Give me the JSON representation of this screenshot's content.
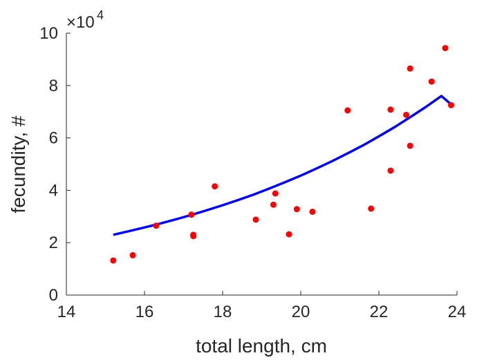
{
  "chart_data": {
    "type": "scatter",
    "title": "",
    "xlabel": "total length, cm",
    "ylabel": "fecundity, #",
    "xlim": [
      14,
      24
    ],
    "ylim": [
      0,
      100000
    ],
    "x_ticks": [
      "14",
      "16",
      "18",
      "20",
      "22",
      "24"
    ],
    "y_ticks": [
      "0",
      "2",
      "4",
      "6",
      "8",
      "10"
    ],
    "y_multiplier_base": "×10",
    "y_multiplier_exponent": "4",
    "grid": false,
    "legend": "none",
    "colors": {
      "points": "#ff0000",
      "fit": "#0000ee",
      "axes": "#262626"
    },
    "series": [
      {
        "kind": "scatter",
        "points": [
          [
            15.2,
            13200
          ],
          [
            15.7,
            15200
          ],
          [
            16.3,
            26500
          ],
          [
            17.2,
            30700
          ],
          [
            17.25,
            23000
          ],
          [
            17.25,
            22500
          ],
          [
            17.8,
            41500
          ],
          [
            18.85,
            28800
          ],
          [
            19.3,
            34500
          ],
          [
            19.35,
            38800
          ],
          [
            19.7,
            23200
          ],
          [
            19.9,
            32800
          ],
          [
            20.3,
            31800
          ],
          [
            21.2,
            70500
          ],
          [
            21.8,
            33000
          ],
          [
            22.3,
            47500
          ],
          [
            22.3,
            70800
          ],
          [
            22.7,
            68800
          ],
          [
            22.8,
            57000
          ],
          [
            22.8,
            86500
          ],
          [
            23.35,
            81500
          ],
          [
            23.7,
            94300
          ],
          [
            23.85,
            72500
          ]
        ]
      },
      {
        "kind": "line",
        "x": [
          15.2,
          15.6,
          16.0,
          16.4,
          16.8,
          17.2,
          17.6,
          18.0,
          18.4,
          18.8,
          19.2,
          19.6,
          20.0,
          20.4,
          20.8,
          21.2,
          21.6,
          22.0,
          22.4,
          22.8,
          23.2,
          23.6,
          23.85
        ],
        "y": [
          23000,
          24400,
          25800,
          27300,
          28900,
          30600,
          32400,
          34300,
          36300,
          38400,
          40700,
          43100,
          45600,
          48300,
          51100,
          54100,
          57200,
          60600,
          64100,
          67900,
          71800,
          76000,
          72800
        ]
      }
    ]
  }
}
